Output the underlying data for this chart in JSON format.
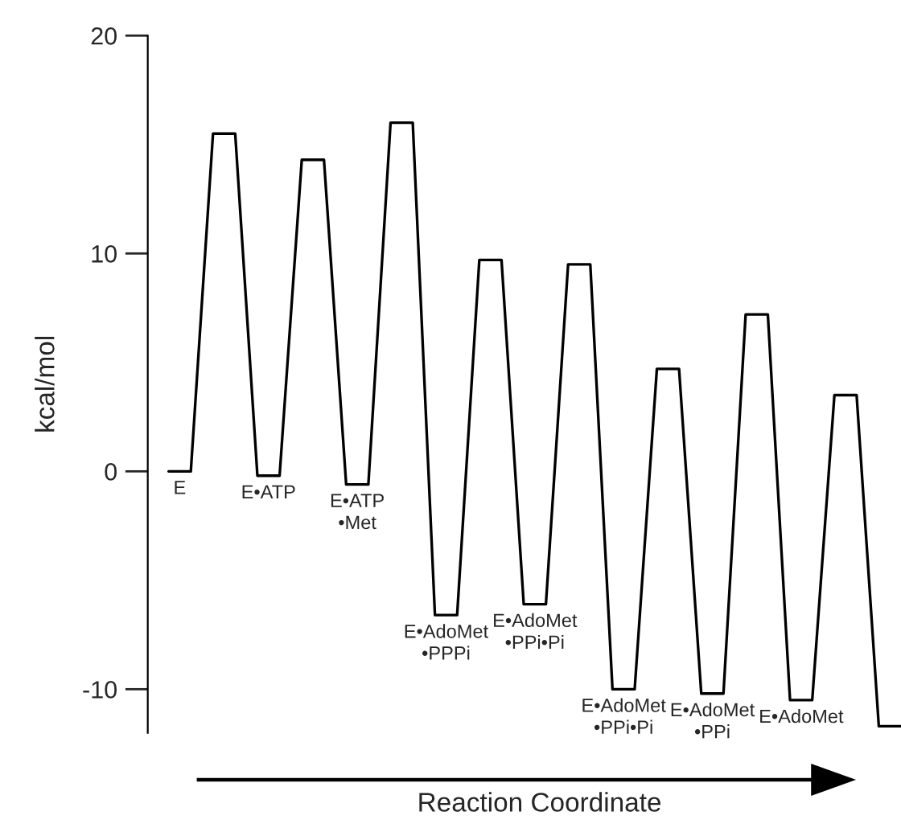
{
  "chart_data": {
    "type": "line",
    "xlabel": "Reaction Coordinate",
    "ylabel": "kcal/mol",
    "categories": [
      null,
      null,
      null,
      null,
      null,
      null,
      null,
      null,
      null,
      null,
      null,
      null,
      null,
      null,
      null,
      null,
      null,
      null,
      null,
      null,
      null,
      null,
      null,
      null,
      null,
      null,
      null,
      null,
      null,
      null,
      null,
      null,
      null,
      null
    ],
    "values": [
      0,
      0,
      15.5,
      15.5,
      -0.2,
      -0.2,
      14.3,
      14.3,
      -0.6,
      -0.6,
      16.0,
      16.0,
      -6.6,
      -6.6,
      9.7,
      9.7,
      -6.1,
      -6.1,
      9.5,
      9.5,
      -10.0,
      -10.0,
      4.7,
      4.7,
      -10.2,
      -10.2,
      7.2,
      7.2,
      -10.5,
      -10.5,
      3.5,
      3.5,
      -11.7,
      -11.7
    ],
    "value_labels": [
      "E",
      null,
      null,
      null,
      "E•ATP",
      null,
      null,
      null,
      "E•ATP\n•Met",
      null,
      null,
      null,
      "E•AdoMet\n•PPPi",
      null,
      null,
      null,
      "E•AdoMet\n•PPi•Pi",
      null,
      null,
      null,
      "E•AdoMet\n•PPi•Pi",
      null,
      null,
      null,
      "E•AdoMet\n•PPi",
      null,
      null,
      null,
      "E•AdoMet",
      null,
      null,
      null,
      null,
      null
    ],
    "color": "#000000",
    "ylim": [
      -12,
      20
    ],
    "yticks": [
      -10,
      0,
      10,
      20
    ],
    "grid": false,
    "legend": false,
    "marker": "none",
    "line_style": "solid",
    "tick_labels": "y"
  }
}
